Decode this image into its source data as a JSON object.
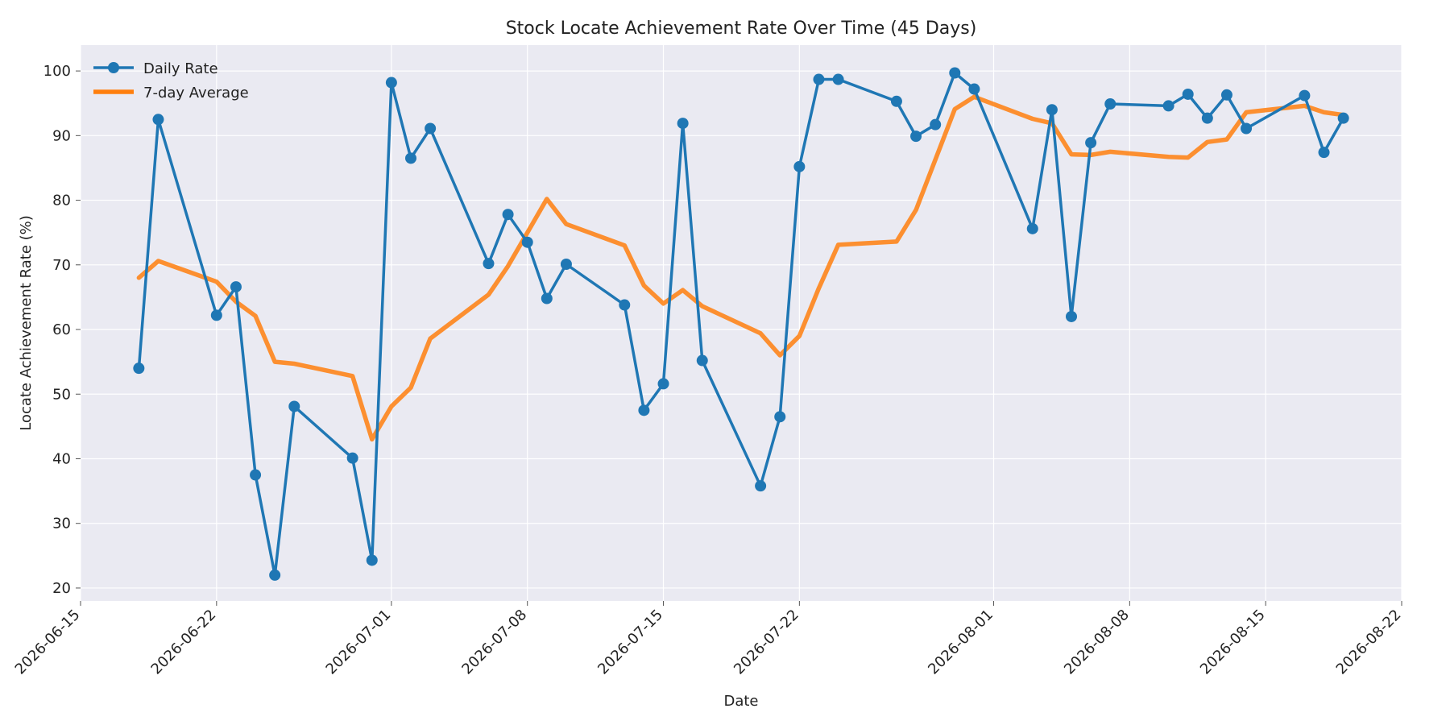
{
  "chart_data": {
    "type": "line",
    "title": "Stock Locate Achievement Rate Over Time (45 Days)",
    "xlabel": "Date",
    "ylabel": "Locate Achievement Rate (%)",
    "xlim": [
      "2026-06-15",
      "2026-08-22"
    ],
    "ylim": [
      18,
      104
    ],
    "x_ticks": [
      "2026-06-15",
      "2026-06-22",
      "2026-07-01",
      "2026-07-08",
      "2026-07-15",
      "2026-07-22",
      "2026-08-01",
      "2026-08-08",
      "2026-08-15",
      "2026-08-22"
    ],
    "y_ticks": [
      20,
      30,
      40,
      50,
      60,
      70,
      80,
      90,
      100
    ],
    "grid": true,
    "legend_position": "top-left",
    "colors": {
      "daily": "#1f77b4",
      "average": "#ff7f0e",
      "plot_bg": "#eaeaf2"
    },
    "series": [
      {
        "name": "Daily Rate",
        "style": "line-with-markers",
        "points": [
          [
            "2026-06-18",
            54.0
          ],
          [
            "2026-06-19",
            92.5
          ],
          [
            "2026-06-22",
            62.2
          ],
          [
            "2026-06-23",
            66.6
          ],
          [
            "2026-06-24",
            37.5
          ],
          [
            "2026-06-25",
            22.0
          ],
          [
            "2026-06-26",
            48.1
          ],
          [
            "2026-06-29",
            40.1
          ],
          [
            "2026-06-30",
            24.3
          ],
          [
            "2026-07-01",
            98.2
          ],
          [
            "2026-07-02",
            86.5
          ],
          [
            "2026-07-03",
            91.1
          ],
          [
            "2026-07-06",
            70.2
          ],
          [
            "2026-07-07",
            77.8
          ],
          [
            "2026-07-08",
            73.5
          ],
          [
            "2026-07-09",
            64.8
          ],
          [
            "2026-07-10",
            70.1
          ],
          [
            "2026-07-13",
            63.8
          ],
          [
            "2026-07-14",
            47.5
          ],
          [
            "2026-07-15",
            51.6
          ],
          [
            "2026-07-16",
            91.9
          ],
          [
            "2026-07-17",
            55.2
          ],
          [
            "2026-07-20",
            35.8
          ],
          [
            "2026-07-21",
            46.5
          ],
          [
            "2026-07-22",
            85.2
          ],
          [
            "2026-07-23",
            98.7
          ],
          [
            "2026-07-24",
            98.7
          ],
          [
            "2026-07-27",
            95.3
          ],
          [
            "2026-07-28",
            89.9
          ],
          [
            "2026-07-29",
            91.7
          ],
          [
            "2026-07-30",
            99.7
          ],
          [
            "2026-07-31",
            97.2
          ],
          [
            "2026-08-03",
            75.6
          ],
          [
            "2026-08-04",
            94.0
          ],
          [
            "2026-08-05",
            62.0
          ],
          [
            "2026-08-06",
            88.9
          ],
          [
            "2026-08-07",
            94.9
          ],
          [
            "2026-08-10",
            94.6
          ],
          [
            "2026-08-11",
            96.4
          ],
          [
            "2026-08-12",
            92.7
          ],
          [
            "2026-08-13",
            96.3
          ],
          [
            "2026-08-14",
            91.1
          ],
          [
            "2026-08-17",
            96.2
          ],
          [
            "2026-08-18",
            87.4
          ],
          [
            "2026-08-19",
            92.7
          ]
        ]
      },
      {
        "name": "7-day Average",
        "style": "line",
        "points": [
          [
            "2026-06-18",
            68.0
          ],
          [
            "2026-06-19",
            70.6
          ],
          [
            "2026-06-22",
            67.4
          ],
          [
            "2026-06-23",
            64.3
          ],
          [
            "2026-06-24",
            62.1
          ],
          [
            "2026-06-25",
            55.0
          ],
          [
            "2026-06-26",
            54.7
          ],
          [
            "2026-06-29",
            52.8
          ],
          [
            "2026-06-30",
            43.0
          ],
          [
            "2026-07-01",
            48.1
          ],
          [
            "2026-07-02",
            51.0
          ],
          [
            "2026-07-03",
            58.6
          ],
          [
            "2026-07-06",
            65.4
          ],
          [
            "2026-07-07",
            69.8
          ],
          [
            "2026-07-08",
            75.0
          ],
          [
            "2026-07-09",
            80.2
          ],
          [
            "2026-07-10",
            76.3
          ],
          [
            "2026-07-13",
            73.0
          ],
          [
            "2026-07-14",
            66.8
          ],
          [
            "2026-07-15",
            64.0
          ],
          [
            "2026-07-16",
            66.1
          ],
          [
            "2026-07-17",
            63.6
          ],
          [
            "2026-07-20",
            59.4
          ],
          [
            "2026-07-21",
            56.0
          ],
          [
            "2026-07-22",
            59.0
          ],
          [
            "2026-07-23",
            66.4
          ],
          [
            "2026-07-24",
            73.1
          ],
          [
            "2026-07-27",
            73.6
          ],
          [
            "2026-07-28",
            78.5
          ],
          [
            "2026-07-29",
            86.3
          ],
          [
            "2026-07-30",
            94.1
          ],
          [
            "2026-07-31",
            96.0
          ],
          [
            "2026-08-03",
            92.6
          ],
          [
            "2026-08-04",
            91.9
          ],
          [
            "2026-08-05",
            87.1
          ],
          [
            "2026-08-06",
            87.0
          ],
          [
            "2026-08-07",
            87.5
          ],
          [
            "2026-08-10",
            86.7
          ],
          [
            "2026-08-11",
            86.6
          ],
          [
            "2026-08-12",
            89.0
          ],
          [
            "2026-08-13",
            89.4
          ],
          [
            "2026-08-14",
            93.6
          ],
          [
            "2026-08-17",
            94.6
          ],
          [
            "2026-08-18",
            93.6
          ],
          [
            "2026-08-19",
            93.2
          ]
        ]
      }
    ]
  }
}
